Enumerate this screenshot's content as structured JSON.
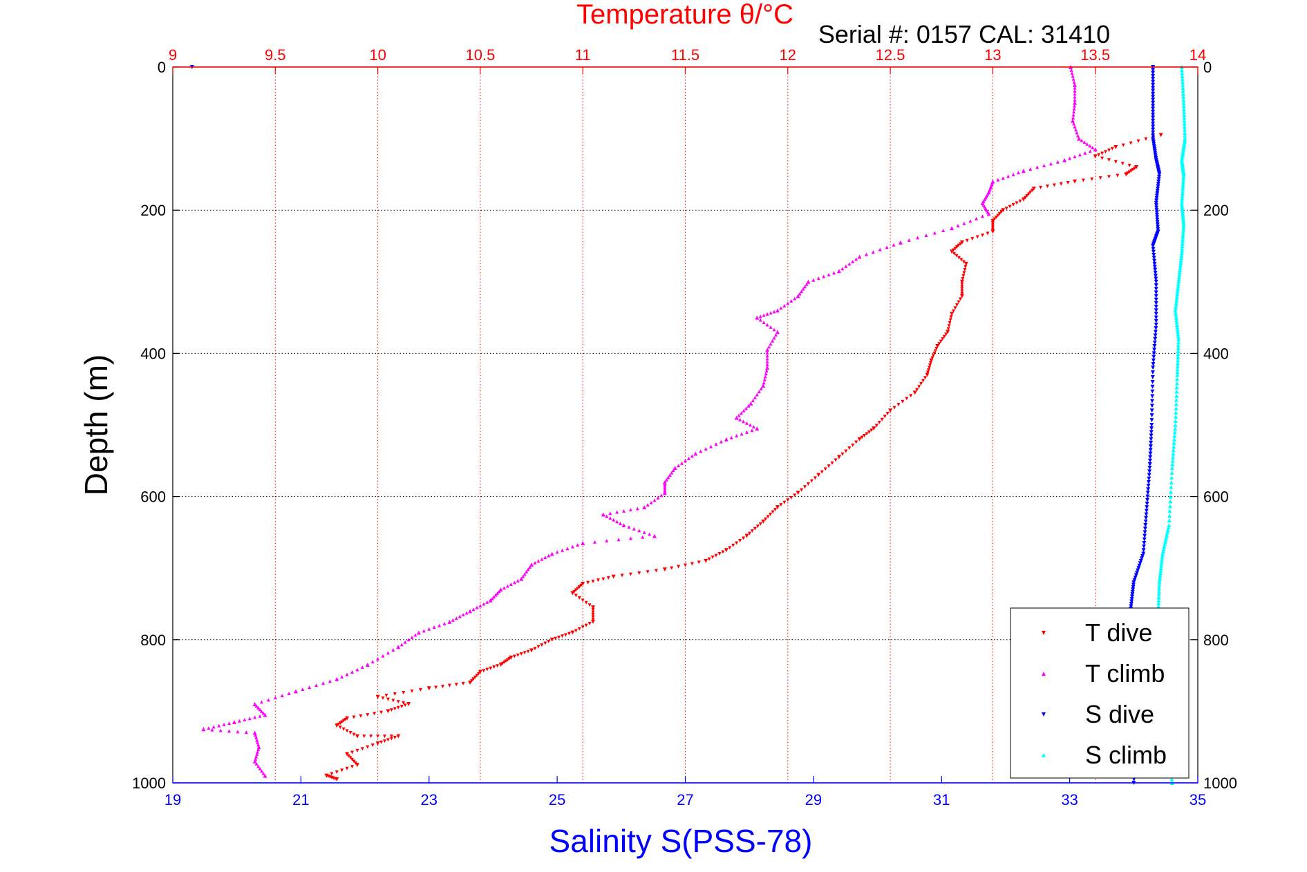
{
  "chart_data": {
    "type": "scatter",
    "title": "Temperature θ/°C",
    "subtitle": "Serial #: 0157  CAL: 31410",
    "xlabel": "Salinity S(PSS-78)",
    "ylabel": "Depth (m)",
    "top_axis": {
      "range": [
        9,
        14
      ],
      "ticks": [
        "9",
        "9.5",
        "10",
        "10.5",
        "11",
        "11.5",
        "12",
        "12.5",
        "13",
        "13.5",
        "14"
      ],
      "color": "#ff0000"
    },
    "bottom_axis": {
      "range": [
        19,
        35
      ],
      "ticks": [
        "19",
        "21",
        "23",
        "25",
        "27",
        "29",
        "31",
        "33",
        "35"
      ],
      "color": "#0000ff"
    },
    "y_axis": {
      "range": [
        0,
        1000
      ],
      "reversed": true,
      "ticks": [
        "0",
        "200",
        "400",
        "600",
        "800",
        "1000"
      ]
    },
    "grid": true,
    "legend_position": "bottom-right",
    "series": [
      {
        "name": "T dive",
        "axis": "temperature",
        "color": "#ff0000",
        "marker": "triangle-down",
        "points": [
          [
            13.82,
            95
          ],
          [
            13.6,
            112
          ],
          [
            13.5,
            125
          ],
          [
            13.7,
            140
          ],
          [
            13.65,
            150
          ],
          [
            13.4,
            160
          ],
          [
            13.2,
            170
          ],
          [
            13.15,
            185
          ],
          [
            13.05,
            200
          ],
          [
            13.0,
            215
          ],
          [
            13.0,
            230
          ],
          [
            12.85,
            245
          ],
          [
            12.8,
            258
          ],
          [
            12.87,
            275
          ],
          [
            12.85,
            300
          ],
          [
            12.85,
            320
          ],
          [
            12.8,
            345
          ],
          [
            12.78,
            370
          ],
          [
            12.73,
            390
          ],
          [
            12.7,
            410
          ],
          [
            12.68,
            430
          ],
          [
            12.62,
            455
          ],
          [
            12.5,
            480
          ],
          [
            12.42,
            505
          ],
          [
            12.35,
            520
          ],
          [
            12.25,
            545
          ],
          [
            12.15,
            570
          ],
          [
            12.05,
            595
          ],
          [
            11.95,
            615
          ],
          [
            11.88,
            635
          ],
          [
            11.8,
            655
          ],
          [
            11.7,
            675
          ],
          [
            11.6,
            690
          ],
          [
            11.4,
            702
          ],
          [
            11.15,
            712
          ],
          [
            11.0,
            722
          ],
          [
            10.95,
            735
          ],
          [
            11.05,
            755
          ],
          [
            11.05,
            775
          ],
          [
            10.95,
            790
          ],
          [
            10.85,
            800
          ],
          [
            10.75,
            815
          ],
          [
            10.65,
            825
          ],
          [
            10.6,
            835
          ],
          [
            10.5,
            845
          ],
          [
            10.45,
            860
          ],
          [
            10.25,
            868
          ],
          [
            10.0,
            880
          ],
          [
            10.15,
            890
          ],
          [
            10.05,
            900
          ],
          [
            9.85,
            910
          ],
          [
            9.8,
            920
          ],
          [
            9.9,
            935
          ],
          [
            10.1,
            935
          ],
          [
            10.0,
            945
          ],
          [
            9.85,
            960
          ],
          [
            9.9,
            975
          ],
          [
            9.75,
            990
          ],
          [
            9.8,
            995
          ]
        ]
      },
      {
        "name": "T climb",
        "axis": "temperature",
        "color": "#ff00ff",
        "marker": "triangle-up",
        "points": [
          [
            13.38,
            0
          ],
          [
            13.4,
            25
          ],
          [
            13.4,
            50
          ],
          [
            13.39,
            75
          ],
          [
            13.42,
            100
          ],
          [
            13.5,
            115
          ],
          [
            13.35,
            130
          ],
          [
            13.15,
            145
          ],
          [
            13.0,
            160
          ],
          [
            12.98,
            175
          ],
          [
            12.95,
            190
          ],
          [
            12.98,
            205
          ],
          [
            12.8,
            225
          ],
          [
            12.55,
            245
          ],
          [
            12.35,
            265
          ],
          [
            12.25,
            285
          ],
          [
            12.1,
            300
          ],
          [
            12.05,
            320
          ],
          [
            11.95,
            340
          ],
          [
            11.85,
            350
          ],
          [
            11.95,
            370
          ],
          [
            11.9,
            395
          ],
          [
            11.9,
            420
          ],
          [
            11.88,
            445
          ],
          [
            11.82,
            470
          ],
          [
            11.75,
            490
          ],
          [
            11.85,
            505
          ],
          [
            11.7,
            520
          ],
          [
            11.55,
            540
          ],
          [
            11.45,
            560
          ],
          [
            11.4,
            580
          ],
          [
            11.4,
            595
          ],
          [
            11.3,
            615
          ],
          [
            11.1,
            625
          ],
          [
            11.2,
            640
          ],
          [
            11.35,
            655
          ],
          [
            11.0,
            665
          ],
          [
            10.85,
            680
          ],
          [
            10.75,
            695
          ],
          [
            10.7,
            715
          ],
          [
            10.6,
            730
          ],
          [
            10.55,
            745
          ],
          [
            10.45,
            760
          ],
          [
            10.35,
            775
          ],
          [
            10.2,
            790
          ],
          [
            10.1,
            810
          ],
          [
            9.95,
            835
          ],
          [
            9.8,
            855
          ],
          [
            9.6,
            872
          ],
          [
            9.4,
            890
          ],
          [
            9.45,
            905
          ],
          [
            9.3,
            915
          ],
          [
            9.15,
            925
          ],
          [
            9.4,
            930
          ],
          [
            9.42,
            950
          ],
          [
            9.4,
            970
          ],
          [
            9.45,
            990
          ]
        ]
      },
      {
        "name": "S dive",
        "axis": "salinity",
        "color": "#0000ff",
        "marker": "triangle-down",
        "points": [
          [
            19.3,
            0
          ],
          [
            34.3,
            0
          ],
          [
            34.3,
            50
          ],
          [
            34.3,
            100
          ],
          [
            34.35,
            130
          ],
          [
            34.4,
            150
          ],
          [
            34.35,
            190
          ],
          [
            34.38,
            230
          ],
          [
            34.3,
            250
          ],
          [
            34.35,
            300
          ],
          [
            34.35,
            360
          ],
          [
            34.3,
            420
          ],
          [
            34.28,
            500
          ],
          [
            34.25,
            560
          ],
          [
            34.2,
            620
          ],
          [
            34.15,
            680
          ],
          [
            34.0,
            720
          ],
          [
            33.95,
            760
          ],
          [
            34.0,
            820
          ],
          [
            34.05,
            880
          ],
          [
            34.05,
            940
          ],
          [
            34.0,
            1000
          ]
        ]
      },
      {
        "name": "S climb",
        "axis": "salinity",
        "color": "#00ffff",
        "marker": "triangle-up",
        "points": [
          [
            34.75,
            0
          ],
          [
            34.78,
            50
          ],
          [
            34.8,
            100
          ],
          [
            34.75,
            130
          ],
          [
            34.78,
            150
          ],
          [
            34.75,
            190
          ],
          [
            34.78,
            220
          ],
          [
            34.75,
            260
          ],
          [
            34.7,
            300
          ],
          [
            34.65,
            340
          ],
          [
            34.7,
            380
          ],
          [
            34.68,
            430
          ],
          [
            34.65,
            500
          ],
          [
            34.6,
            560
          ],
          [
            34.55,
            640
          ],
          [
            34.45,
            680
          ],
          [
            34.4,
            720
          ],
          [
            34.38,
            770
          ],
          [
            34.4,
            820
          ],
          [
            34.5,
            870
          ],
          [
            34.55,
            940
          ],
          [
            34.6,
            1000
          ]
        ]
      }
    ]
  }
}
